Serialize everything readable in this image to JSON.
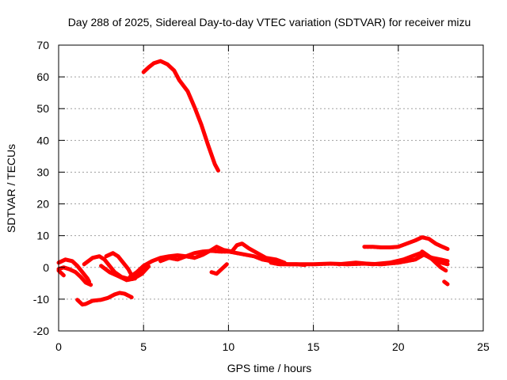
{
  "chart_data": {
    "type": "line",
    "title": "Day 288 of 2025, Sidereal Day-to-day VTEC variation (SDTVAR) for receiver mizu",
    "xlabel": "GPS time / hours",
    "ylabel": "SDTVAR / TECUs",
    "xlim": [
      0,
      25
    ],
    "ylim": [
      -20,
      70
    ],
    "xticks": [
      0,
      5,
      10,
      15,
      20,
      25
    ],
    "yticks": [
      -20,
      -10,
      0,
      10,
      20,
      30,
      40,
      50,
      60,
      70
    ],
    "grid": true,
    "color": "#ff0000",
    "series": [
      {
        "name": "arc-high",
        "points": [
          [
            5.0,
            61.5
          ],
          [
            5.3,
            63
          ],
          [
            5.6,
            64.3
          ],
          [
            6.0,
            65
          ],
          [
            6.4,
            64
          ],
          [
            6.8,
            62
          ],
          [
            7.1,
            59
          ],
          [
            7.6,
            55.5
          ],
          [
            8.0,
            50.5
          ],
          [
            8.4,
            45
          ],
          [
            8.8,
            38.5
          ],
          [
            9.2,
            32.5
          ],
          [
            9.4,
            30.5
          ]
        ]
      },
      {
        "name": "arc-neg-low",
        "points": [
          [
            1.1,
            -10.2
          ],
          [
            1.4,
            -11.7
          ],
          [
            1.6,
            -11.5
          ],
          [
            2.0,
            -10.5
          ],
          [
            2.5,
            -10.2
          ],
          [
            2.9,
            -9.6
          ],
          [
            3.3,
            -8.5
          ],
          [
            3.6,
            -8.0
          ],
          [
            3.9,
            -8.3
          ],
          [
            4.3,
            -9.4
          ]
        ]
      },
      {
        "name": "arc-left-a",
        "points": [
          [
            0.0,
            1.5
          ],
          [
            0.4,
            2.5
          ],
          [
            0.8,
            2.0
          ],
          [
            1.1,
            0.5
          ],
          [
            1.4,
            -1.5
          ],
          [
            1.7,
            -3.5
          ],
          [
            1.8,
            -4.5
          ]
        ]
      },
      {
        "name": "arc-left-b",
        "points": [
          [
            0.0,
            -0.5
          ],
          [
            0.3,
            0.0
          ],
          [
            0.6,
            -0.5
          ],
          [
            1.0,
            -1.5
          ],
          [
            1.3,
            -3.0
          ],
          [
            1.6,
            -4.8
          ],
          [
            1.9,
            -5.5
          ]
        ]
      },
      {
        "name": "arc-left-c",
        "points": [
          [
            0.0,
            -1.0
          ],
          [
            0.2,
            -2.0
          ],
          [
            0.3,
            -2.5
          ]
        ]
      },
      {
        "name": "arc-2to4-a",
        "points": [
          [
            1.5,
            1.0
          ],
          [
            2.0,
            3.0
          ],
          [
            2.4,
            3.5
          ],
          [
            2.7,
            2.5
          ],
          [
            3.0,
            0.5
          ],
          [
            3.3,
            -1.5
          ],
          [
            3.7,
            -3.0
          ],
          [
            4.1,
            -3.6
          ],
          [
            4.5,
            -2.5
          ],
          [
            4.9,
            -1.0
          ],
          [
            5.2,
            0.5
          ]
        ]
      },
      {
        "name": "arc-2to4-b",
        "points": [
          [
            2.8,
            3.5
          ],
          [
            3.2,
            4.5
          ],
          [
            3.5,
            3.5
          ],
          [
            3.8,
            1.5
          ],
          [
            4.1,
            -0.5
          ],
          [
            4.3,
            -2.5
          ],
          [
            4.5,
            -3.5
          ]
        ]
      },
      {
        "name": "arc-2to4-c",
        "points": [
          [
            2.5,
            0.5
          ],
          [
            3.0,
            -1.5
          ],
          [
            3.5,
            -2.7
          ],
          [
            4.0,
            -4.0
          ],
          [
            4.4,
            -3.6
          ],
          [
            4.9,
            -2.0
          ],
          [
            5.3,
            0.3
          ]
        ]
      },
      {
        "name": "arc-mid-a",
        "points": [
          [
            4.2,
            -3.0
          ],
          [
            4.6,
            -1.5
          ],
          [
            5.0,
            0.5
          ],
          [
            5.5,
            2.0
          ],
          [
            6.0,
            3.0
          ],
          [
            6.5,
            3.5
          ],
          [
            7.0,
            3.8
          ],
          [
            7.5,
            3.5
          ],
          [
            8.0,
            4.5
          ],
          [
            8.5,
            5.0
          ],
          [
            9.0,
            5.2
          ],
          [
            9.5,
            5.0
          ],
          [
            10.0,
            5.0
          ],
          [
            10.5,
            4.5
          ],
          [
            11.0,
            4.0
          ],
          [
            11.5,
            3.5
          ],
          [
            12.0,
            2.5
          ],
          [
            12.5,
            2.0
          ],
          [
            13.0,
            1.5
          ],
          [
            13.5,
            1.0
          ],
          [
            14.0,
            1.0
          ],
          [
            14.5,
            0.8
          ]
        ]
      },
      {
        "name": "arc-mid-b",
        "points": [
          [
            6.0,
            2.0
          ],
          [
            6.5,
            3.0
          ],
          [
            7.0,
            2.5
          ],
          [
            7.5,
            3.5
          ],
          [
            8.0,
            3.0
          ],
          [
            8.5,
            4.0
          ],
          [
            9.0,
            5.5
          ],
          [
            9.3,
            6.5
          ],
          [
            9.7,
            5.5
          ],
          [
            10.2,
            5.0
          ],
          [
            10.5,
            7.0
          ],
          [
            10.8,
            7.5
          ],
          [
            11.2,
            6.0
          ],
          [
            11.7,
            4.5
          ],
          [
            12.2,
            3.0
          ],
          [
            12.8,
            2.5
          ],
          [
            13.3,
            1.5
          ]
        ]
      },
      {
        "name": "arc-dip-9",
        "points": [
          [
            9.0,
            -1.5
          ],
          [
            9.3,
            -2.0
          ],
          [
            9.6,
            -0.5
          ],
          [
            9.9,
            1.0
          ]
        ]
      },
      {
        "name": "arc-right-a",
        "points": [
          [
            12.5,
            1.5
          ],
          [
            13.0,
            1.0
          ],
          [
            14.0,
            1.0
          ],
          [
            15.0,
            1.0
          ],
          [
            16.0,
            1.2
          ],
          [
            17.0,
            1.0
          ],
          [
            18.0,
            1.2
          ],
          [
            19.0,
            1.0
          ],
          [
            20.0,
            1.5
          ],
          [
            20.5,
            2.0
          ],
          [
            21.0,
            2.5
          ],
          [
            21.5,
            4.0
          ],
          [
            22.0,
            3.0
          ],
          [
            22.5,
            2.5
          ],
          [
            22.9,
            2.0
          ]
        ]
      },
      {
        "name": "arc-right-b",
        "points": [
          [
            16.5,
            1.0
          ],
          [
            17.5,
            1.5
          ],
          [
            18.5,
            1.0
          ],
          [
            19.5,
            1.5
          ],
          [
            20.3,
            2.5
          ],
          [
            20.8,
            3.5
          ],
          [
            21.3,
            4.5
          ],
          [
            21.7,
            3.5
          ],
          [
            22.2,
            2.0
          ],
          [
            22.9,
            1.0
          ]
        ]
      },
      {
        "name": "arc-right-high",
        "points": [
          [
            18.0,
            6.5
          ],
          [
            18.5,
            6.5
          ],
          [
            19.0,
            6.3
          ],
          [
            19.5,
            6.3
          ],
          [
            20.0,
            6.5
          ],
          [
            20.5,
            7.5
          ],
          [
            21.0,
            8.5
          ],
          [
            21.4,
            9.5
          ],
          [
            21.8,
            9.0
          ],
          [
            22.2,
            7.5
          ],
          [
            22.6,
            6.5
          ],
          [
            22.9,
            5.8
          ]
        ]
      },
      {
        "name": "arc-right-drop",
        "points": [
          [
            21.4,
            5.0
          ],
          [
            21.8,
            3.5
          ],
          [
            22.2,
            1.5
          ],
          [
            22.5,
            0.0
          ],
          [
            22.8,
            -1.0
          ]
        ]
      },
      {
        "name": "arc-right-dot",
        "points": [
          [
            22.7,
            -4.5
          ],
          [
            22.9,
            -5.3
          ]
        ]
      }
    ]
  }
}
